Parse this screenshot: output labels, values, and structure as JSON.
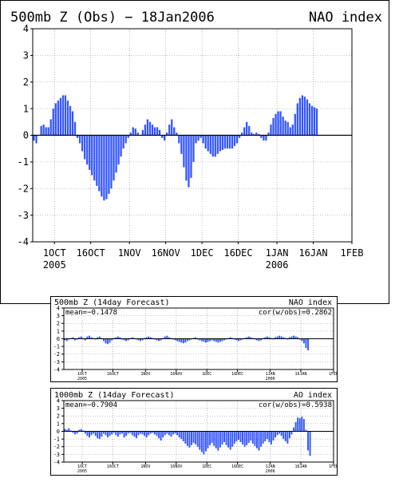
{
  "chart_data": [
    {
      "type": "bar",
      "title": "500mb Z (Obs) − 18Jan2006",
      "index_label": "NAO index",
      "ylim": [
        -4,
        4
      ],
      "yticks": [
        -4,
        -3,
        -2,
        -1,
        0,
        1,
        2,
        3,
        4
      ],
      "xlim": [
        "2005-09-22",
        "2006-02-01"
      ],
      "xticks": [
        {
          "date": "2005-10-01",
          "label": "1OCT",
          "year": "2005"
        },
        {
          "date": "2005-10-16",
          "label": "16OCT",
          "year": ""
        },
        {
          "date": "2005-11-01",
          "label": "1NOV",
          "year": ""
        },
        {
          "date": "2005-11-16",
          "label": "16NOV",
          "year": ""
        },
        {
          "date": "2005-12-01",
          "label": "1DEC",
          "year": ""
        },
        {
          "date": "2005-12-16",
          "label": "16DEC",
          "year": ""
        },
        {
          "date": "2006-01-01",
          "label": "1JAN",
          "year": "2006"
        },
        {
          "date": "2006-01-16",
          "label": "16JAN",
          "year": ""
        },
        {
          "date": "2006-02-01",
          "label": "1FEB",
          "year": ""
        }
      ],
      "grid": true,
      "bar_color": "#3355ff",
      "start_date": "2005-09-22",
      "values": [
        -0.2,
        -0.3,
        0.0,
        0.35,
        0.4,
        0.3,
        0.3,
        0.6,
        1.0,
        1.2,
        1.3,
        1.4,
        1.5,
        1.5,
        1.3,
        1.1,
        0.9,
        0.5,
        -0.1,
        -0.3,
        -0.6,
        -0.9,
        -1.1,
        -1.3,
        -1.5,
        -1.7,
        -1.9,
        -2.1,
        -2.3,
        -2.45,
        -2.4,
        -2.2,
        -2.0,
        -1.7,
        -1.4,
        -1.1,
        -0.8,
        -0.5,
        -0.3,
        -0.1,
        0.1,
        0.3,
        0.25,
        0.1,
        0.0,
        0.2,
        0.4,
        0.6,
        0.5,
        0.4,
        0.3,
        0.3,
        0.2,
        -0.1,
        -0.2,
        0.1,
        0.4,
        0.6,
        0.3,
        0.1,
        -0.3,
        -0.7,
        -1.2,
        -1.7,
        -1.95,
        -1.6,
        -1.0,
        -0.3,
        -0.2,
        -0.1,
        -0.3,
        -0.5,
        -0.6,
        -0.7,
        -0.8,
        -0.8,
        -0.7,
        -0.6,
        -0.55,
        -0.5,
        -0.5,
        -0.5,
        -0.5,
        -0.4,
        -0.3,
        -0.1,
        0.1,
        0.3,
        0.5,
        0.35,
        0.1,
        0.05,
        0.1,
        0.05,
        -0.1,
        -0.2,
        -0.2,
        0.1,
        0.4,
        0.65,
        0.8,
        0.9,
        0.9,
        0.7,
        0.55,
        0.5,
        0.3,
        0.4,
        0.8,
        1.2,
        1.4,
        1.5,
        1.45,
        1.35,
        1.2,
        1.1,
        1.05,
        1.0
      ]
    },
    {
      "type": "bar",
      "title": "500mb Z (14day Forecast)",
      "index_label": "NAO index",
      "mean_label": "mean=−0.1478",
      "cor_label": "cor(w/obs)=0.2862",
      "ylim": [
        -4,
        4
      ],
      "yticks": [
        -4,
        -3,
        -2,
        -1,
        0,
        1,
        2,
        3,
        4
      ],
      "xlim": [
        "2005-09-22",
        "2006-02-01"
      ],
      "xticks": [
        {
          "date": "2005-10-01",
          "label": "1OCT",
          "year": "2005"
        },
        {
          "date": "2005-10-16",
          "label": "16OCT",
          "year": ""
        },
        {
          "date": "2005-11-01",
          "label": "1NOV",
          "year": ""
        },
        {
          "date": "2005-11-16",
          "label": "16NOV",
          "year": ""
        },
        {
          "date": "2005-12-01",
          "label": "1DEC",
          "year": ""
        },
        {
          "date": "2005-12-16",
          "label": "16DEC",
          "year": ""
        },
        {
          "date": "2006-01-01",
          "label": "1JAN",
          "year": "2006"
        },
        {
          "date": "2006-01-16",
          "label": "16JAN",
          "year": ""
        },
        {
          "date": "2006-02-01",
          "label": "1FEB",
          "year": ""
        }
      ],
      "grid": true,
      "bar_color": "#3355ff",
      "start_date": "2005-09-22",
      "values": [
        -0.2,
        -0.3,
        -0.1,
        0.1,
        0.2,
        -0.2,
        -0.1,
        0.2,
        0.3,
        0.1,
        -0.2,
        0.3,
        0.4,
        0.2,
        0.1,
        -0.1,
        0.2,
        0.3,
        0.1,
        -0.3,
        -0.6,
        -0.7,
        -0.5,
        -0.2,
        0.1,
        0.2,
        0.3,
        0.2,
        -0.1,
        -0.2,
        -0.3,
        -0.2,
        0.1,
        0.2,
        0.1,
        -0.1,
        -0.2,
        -0.3,
        -0.2,
        0.1,
        0.2,
        0.3,
        0.2,
        0.1,
        -0.1,
        -0.2,
        -0.3,
        -0.2,
        0.1,
        0.3,
        0.4,
        0.2,
        0.1,
        -0.1,
        -0.2,
        -0.3,
        -0.4,
        -0.5,
        -0.6,
        -0.5,
        -0.3,
        -0.2,
        -0.1,
        0.1,
        0.2,
        -0.1,
        -0.2,
        -0.3,
        -0.4,
        -0.5,
        -0.4,
        -0.3,
        -0.2,
        -0.3,
        -0.4,
        -0.5,
        -0.4,
        -0.3,
        -0.2,
        -0.1,
        0.1,
        0.2,
        0.1,
        -0.1,
        -0.2,
        -0.3,
        -0.2,
        -0.1,
        0.1,
        0.2,
        0.3,
        0.2,
        0.1,
        -0.1,
        -0.2,
        -0.3,
        -0.2,
        0.1,
        0.2,
        0.3,
        0.2,
        0.1,
        -0.1,
        0.2,
        0.3,
        0.4,
        0.3,
        0.2,
        0.1,
        -0.1,
        0.2,
        0.3,
        0.4,
        0.3,
        0.2,
        -0.1,
        -0.3,
        -0.6,
        -1.2,
        -1.5
      ]
    },
    {
      "type": "bar",
      "title": "1000mb Z (14day Forecast)",
      "index_label": "AO index",
      "mean_label": "mean=−0.7904",
      "cor_label": "cor(w/obs)=0.5938",
      "ylim": [
        -4,
        4
      ],
      "yticks": [
        -4,
        -3,
        -2,
        -1,
        0,
        1,
        2,
        3,
        4
      ],
      "xlim": [
        "2005-09-22",
        "2006-02-01"
      ],
      "xticks": [
        {
          "date": "2005-10-01",
          "label": "1OCT",
          "year": "2005"
        },
        {
          "date": "2005-10-16",
          "label": "16OCT",
          "year": ""
        },
        {
          "date": "2005-11-01",
          "label": "1NOV",
          "year": ""
        },
        {
          "date": "2005-11-16",
          "label": "16NOV",
          "year": ""
        },
        {
          "date": "2005-12-01",
          "label": "1DEC",
          "year": ""
        },
        {
          "date": "2005-12-16",
          "label": "16DEC",
          "year": ""
        },
        {
          "date": "2006-01-01",
          "label": "1JAN",
          "year": "2006"
        },
        {
          "date": "2006-01-16",
          "label": "16JAN",
          "year": ""
        },
        {
          "date": "2006-02-01",
          "label": "1FEB",
          "year": ""
        }
      ],
      "grid": true,
      "bar_color": "#3355ff",
      "start_date": "2005-09-22",
      "values": [
        0.3,
        0.2,
        0.4,
        0.1,
        -0.2,
        -0.4,
        -0.3,
        0.2,
        0.3,
        0.1,
        -0.3,
        -0.6,
        -0.8,
        -0.5,
        -0.3,
        -0.6,
        -0.9,
        -1.0,
        -0.7,
        -0.3,
        -0.5,
        -0.8,
        -0.6,
        -0.4,
        -0.2,
        -0.5,
        -0.7,
        -0.4,
        -0.3,
        -0.8,
        -0.6,
        -0.3,
        -0.2,
        -0.5,
        -0.7,
        -0.9,
        -0.5,
        -0.3,
        -0.4,
        -0.6,
        -0.8,
        -0.5,
        -0.3,
        -0.2,
        -0.4,
        -0.6,
        -0.9,
        -1.2,
        -0.8,
        -0.5,
        -0.3,
        -0.5,
        -0.7,
        -0.4,
        -0.3,
        -0.5,
        -0.8,
        -1.0,
        -1.3,
        -1.6,
        -1.9,
        -2.1,
        -1.8,
        -1.5,
        -1.7,
        -2.0,
        -2.4,
        -2.7,
        -3.0,
        -2.6,
        -2.2,
        -1.8,
        -1.5,
        -1.9,
        -2.2,
        -2.5,
        -2.1,
        -1.7,
        -1.4,
        -1.8,
        -2.1,
        -2.4,
        -2.0,
        -1.6,
        -1.3,
        -1.1,
        -1.4,
        -1.7,
        -2.0,
        -1.8,
        -1.5,
        -1.2,
        -1.6,
        -1.9,
        -2.2,
        -2.5,
        -2.0,
        -1.6,
        -1.3,
        -1.0,
        -1.4,
        -1.7,
        -1.2,
        -0.8,
        -0.5,
        -0.3,
        -0.6,
        -1.0,
        -1.3,
        -1.6,
        -0.9,
        -0.4,
        0.5,
        1.2,
        1.8,
        1.7,
        1.9,
        1.6,
        0.2,
        -2.5,
        -3.2
      ]
    }
  ]
}
